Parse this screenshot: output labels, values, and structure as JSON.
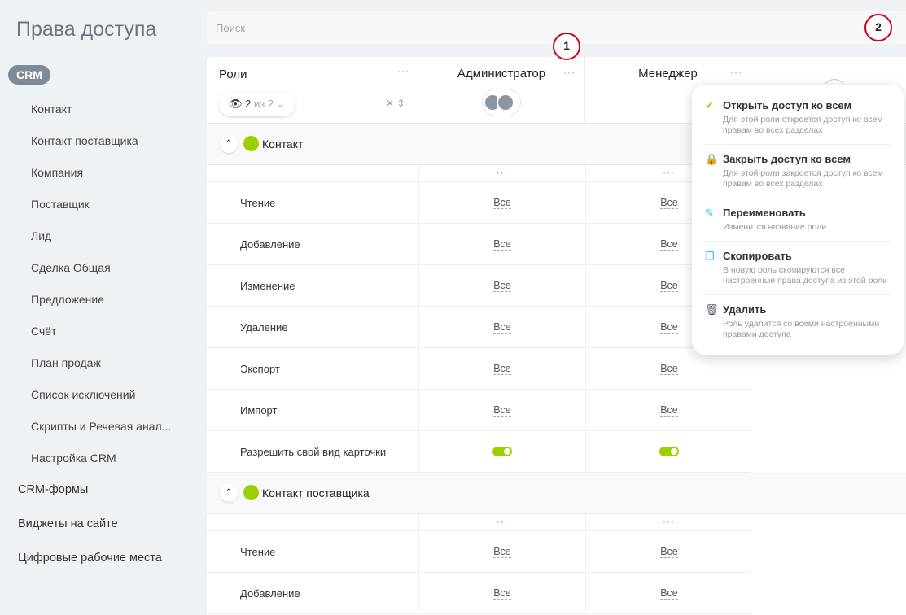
{
  "page_title": "Права доступа",
  "search": {
    "placeholder": "Поиск"
  },
  "sidebar": {
    "active": "CRM",
    "sub_items": [
      "Контакт",
      "Контакт поставщика",
      "Компания",
      "Поставщик",
      "Лид",
      "Сделка Общая",
      "Предложение",
      "Счёт",
      "План продаж",
      "Список исключений",
      "Скрипты и Речевая анал...",
      "Настройка CRM"
    ],
    "top_items": [
      "CRM-формы",
      "Виджеты на сайте",
      "Цифровые рабочие места"
    ]
  },
  "table": {
    "roles_header": "Роли",
    "visible_count": "2",
    "visible_of": "из 2",
    "columns": [
      "Администратор",
      "Менеджер"
    ],
    "add_icon": "plus-icon",
    "sections": [
      {
        "title": "Контакт",
        "rows": [
          {
            "label": "Чтение",
            "values": [
              "Все",
              "Все"
            ]
          },
          {
            "label": "Добавление",
            "values": [
              "Все",
              "Все"
            ]
          },
          {
            "label": "Изменение",
            "values": [
              "Все",
              "Все"
            ]
          },
          {
            "label": "Удаление",
            "values": [
              "Все",
              "Все"
            ]
          },
          {
            "label": "Экспорт",
            "values": [
              "Все",
              "Все"
            ]
          },
          {
            "label": "Импорт",
            "values": [
              "Все",
              "Все"
            ]
          },
          {
            "label": "Разрешить свой вид карточки",
            "toggle": [
              true,
              true
            ]
          }
        ]
      },
      {
        "title": "Контакт поставщика",
        "rows": [
          {
            "label": "Чтение",
            "values": [
              "Все",
              "Все"
            ]
          },
          {
            "label": "Добавление",
            "values": [
              "Все",
              "Все"
            ]
          }
        ]
      }
    ]
  },
  "menu": [
    {
      "icon": "check-icon",
      "color": "#9dcf00",
      "title": "Открыть доступ ко всем",
      "desc": "Для этой роли откроется доступ ко всем правам во всех разделах"
    },
    {
      "icon": "lock-icon",
      "color": "#f0535f",
      "title": "Закрыть доступ ко всем",
      "desc": "Для этой роли закроется доступ ко всем правам во всех разделах"
    },
    {
      "icon": "pencil-icon",
      "color": "#2fc6f6",
      "title": "Переименовать",
      "desc": "Изменится название роли"
    },
    {
      "icon": "copy-icon",
      "color": "#2fc6f6",
      "title": "Скопировать",
      "desc": "В новую роль скопируются все настроенные права доступа из этой роли"
    },
    {
      "icon": "trash-icon",
      "color": "#525c69",
      "title": "Удалить",
      "desc": "Роль удалится со всеми настроенными правами доступа"
    }
  ],
  "annotations": [
    "1",
    "2"
  ]
}
